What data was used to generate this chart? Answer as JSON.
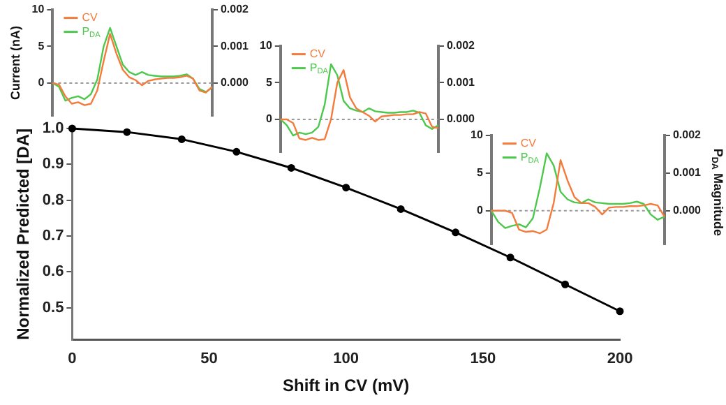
{
  "chart_data": [
    {
      "type": "line",
      "xlabel": "Shift in CV (mV)",
      "ylabel": "Normalized Predicted [DA]",
      "x": [
        0,
        20,
        40,
        60,
        80,
        100,
        120,
        140,
        160,
        180,
        200
      ],
      "series": [
        {
          "color": "#000000",
          "values": [
            1.0,
            0.99,
            0.97,
            0.935,
            0.89,
            0.835,
            0.775,
            0.71,
            0.64,
            0.565,
            0.49
          ]
        }
      ],
      "xlim": [
        0,
        200
      ],
      "xticks": [
        0,
        50,
        100,
        150,
        200
      ],
      "ylim": [
        0.41,
        1.0
      ],
      "yticks": [
        0.5,
        0.6,
        0.7,
        0.8,
        0.9,
        {
          "value": 1,
          "label": "1.0"
        }
      ],
      "marker": "circle",
      "grid": false,
      "legend": false
    },
    {
      "type": "line",
      "ylabel": "Current (nA)",
      "categories": [
        null,
        null,
        null,
        null,
        null,
        null,
        null,
        null,
        null,
        null,
        null,
        null,
        null,
        null,
        null,
        null,
        null,
        null,
        null,
        null,
        null,
        null,
        null,
        null,
        null,
        null
      ],
      "series": [
        {
          "name": "CV",
          "color": "#f47b3c",
          "values": [
            0,
            -0.2,
            -1.8,
            -2.8,
            -2.6,
            -3,
            -2.8,
            -1,
            3,
            6.7,
            4,
            1.8,
            0.8,
            0.4,
            -0.3,
            0.3,
            0.5,
            0.6,
            0.7,
            0.7,
            0.8,
            1.0,
            0.6,
            -1.0,
            -1.3,
            -0.5
          ]
        },
        {
          "name": "P$_{DA}$",
          "color": "#4cc94c",
          "axis": "y2",
          "values": [
            0,
            -0.0001,
            -0.00048,
            -0.0004,
            -0.00036,
            -0.00044,
            -0.0003,
            0.0001,
            0.001,
            0.0015,
            0.001,
            0.0005,
            0.0003,
            0.00022,
            0.0003,
            0.00022,
            0.0002,
            0.00018,
            0.00018,
            0.00018,
            0.0002,
            0.00024,
            0.00012,
            -0.00016,
            -0.00024,
            -0.00012
          ]
        }
      ],
      "ylim": [
        -4.5,
        10
      ],
      "yticks": [
        0,
        5,
        10
      ],
      "y2lim": [
        -0.0009,
        0.002
      ],
      "y2ticks": [
        {
          "value": 0,
          "label": "0.000"
        },
        {
          "value": 0.001,
          "label": "0.001"
        },
        {
          "value": 0.002,
          "label": "0.002"
        }
      ],
      "ref_lines": [
        {
          "axis": "y",
          "value": 0,
          "line_style": "dotted",
          "color": "#999999"
        }
      ],
      "tick_labels": "y",
      "legend": "top left",
      "grid": false
    },
    {
      "type": "line",
      "categories": [
        null,
        null,
        null,
        null,
        null,
        null,
        null,
        null,
        null,
        null,
        null,
        null,
        null,
        null,
        null,
        null,
        null,
        null,
        null,
        null,
        null,
        null,
        null,
        null,
        null,
        null
      ],
      "series": [
        {
          "name": "CV",
          "color": "#f47b3c",
          "values": [
            0,
            0,
            -0.5,
            -2.6,
            -2.8,
            -2.5,
            -2.8,
            -2.7,
            0,
            5,
            6.7,
            3,
            1.5,
            1,
            0.5,
            -0.3,
            0.4,
            0.5,
            0.6,
            0.6,
            0.7,
            0.7,
            1,
            0.8,
            -1,
            -1.2
          ]
        },
        {
          "name": "P$_{DA}$",
          "color": "#4cc94c",
          "axis": "y2",
          "values": [
            0,
            -0.00016,
            -0.00044,
            -0.00036,
            -0.0004,
            -0.00036,
            -0.0002,
            0.0004,
            0.0015,
            0.0012,
            0.0005,
            0.0003,
            0.00024,
            0.0002,
            0.0003,
            0.00022,
            0.0002,
            0.00018,
            0.00018,
            0.0002,
            0.0002,
            0.00024,
            0.00018,
            -0.00016,
            -0.00026,
            -0.00016
          ]
        }
      ],
      "ylim": [
        -4.5,
        10
      ],
      "yticks": [
        0,
        5,
        10
      ],
      "y2lim": [
        -0.0009,
        0.002
      ],
      "y2ticks": [
        {
          "value": 0,
          "label": "0.000"
        },
        {
          "value": 0.001,
          "label": "0.001"
        },
        {
          "value": 0.002,
          "label": "0.002"
        }
      ],
      "ref_lines": [
        {
          "axis": "y",
          "value": 0,
          "line_style": "dotted",
          "color": "#999999"
        }
      ],
      "tick_labels": "y",
      "legend": "top left",
      "grid": false
    },
    {
      "type": "line",
      "y2label": "P$_{DA}$ Magnitude",
      "categories": [
        null,
        null,
        null,
        null,
        null,
        null,
        null,
        null,
        null,
        null,
        null,
        null,
        null,
        null,
        null,
        null,
        null,
        null,
        null,
        null,
        null,
        null,
        null,
        null,
        null,
        null
      ],
      "series": [
        {
          "name": "CV",
          "color": "#f47b3c",
          "values": [
            0,
            0,
            0,
            -0.3,
            -2.5,
            -2.8,
            -2.7,
            -3,
            -2.5,
            1,
            6.7,
            4,
            1.8,
            1,
            1,
            0.5,
            -0.5,
            0.4,
            0.5,
            0.5,
            0.6,
            0.6,
            0.7,
            0.9,
            0.7,
            -0.8
          ]
        },
        {
          "name": "P$_{DA}$",
          "color": "#4cc94c",
          "axis": "y2",
          "values": [
            0,
            -0.0003,
            -0.00046,
            -0.0004,
            -0.00036,
            -0.00044,
            -0.0002,
            0.0006,
            0.00152,
            0.0012,
            0.0005,
            0.0003,
            0.00022,
            0.0002,
            0.0003,
            0.00022,
            0.0002,
            0.00018,
            0.00018,
            0.00018,
            0.0002,
            0.00024,
            0.00018,
            -0.0001,
            -0.00024,
            -0.00016
          ]
        }
      ],
      "ylim": [
        -4.5,
        10
      ],
      "yticks": [
        0,
        5,
        10
      ],
      "y2lim": [
        -0.0009,
        0.002
      ],
      "y2ticks": [
        {
          "value": 0,
          "label": "0.000"
        },
        {
          "value": 0.001,
          "label": "0.001"
        },
        {
          "value": 0.002,
          "label": "0.002"
        }
      ],
      "ref_lines": [
        {
          "axis": "y",
          "value": 0,
          "line_style": "dotted",
          "color": "#999999"
        }
      ],
      "tick_labels": "y",
      "legend": "top left",
      "grid": false
    }
  ]
}
